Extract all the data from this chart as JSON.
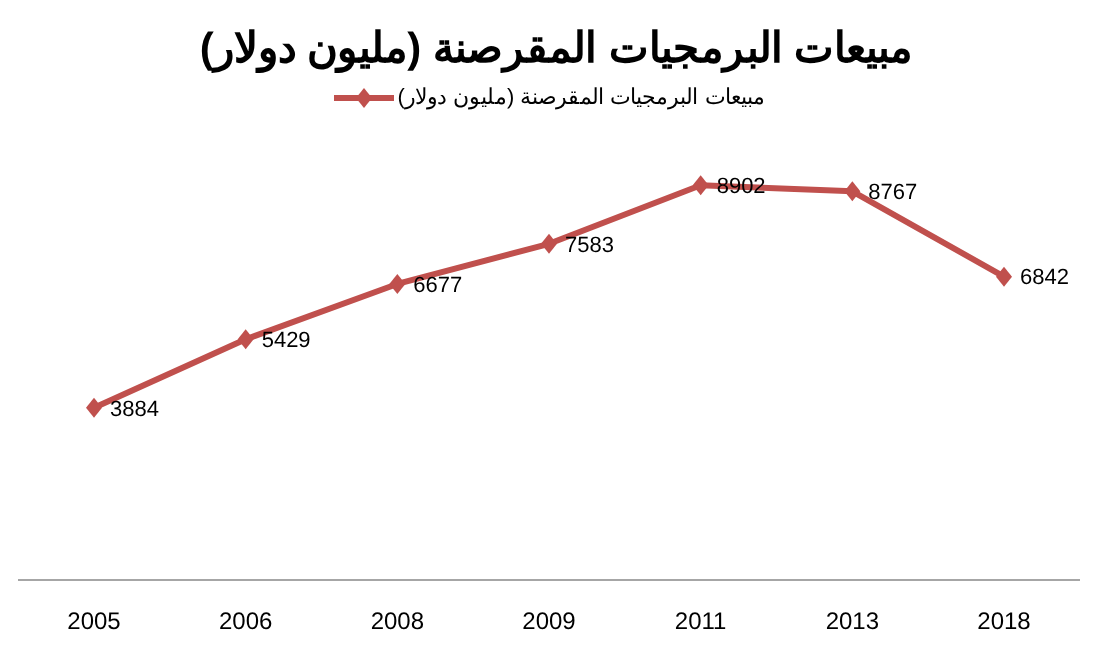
{
  "chart_data": {
    "type": "line",
    "title": "مبيعات البرمجيات المقرصنة (مليون دولار)",
    "categories": [
      "2005",
      "2006",
      "2008",
      "2009",
      "2011",
      "2013",
      "2018"
    ],
    "series": [
      {
        "name": "مبيعات البرمجيات المقرصنة (مليون دولار)",
        "color": "#c0504d",
        "values": [
          3884,
          5429,
          6677,
          7583,
          8902,
          8767,
          6842
        ]
      }
    ],
    "data_labels": true,
    "legend": "top",
    "marker": "diamond",
    "grid": false
  }
}
